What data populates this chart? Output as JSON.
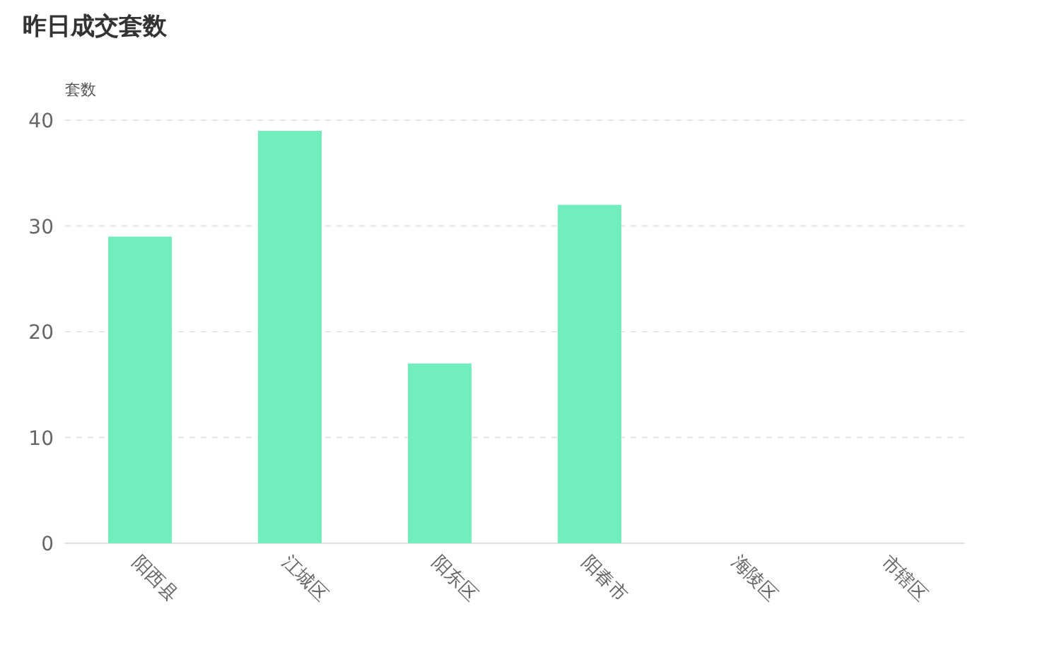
{
  "chart_data": {
    "type": "bar",
    "title": "昨日成交套数",
    "ylabel": "套数",
    "categories": [
      "阳西县",
      "江城区",
      "阳东区",
      "阳春市",
      "海陵区",
      "市辖区"
    ],
    "values": [
      29,
      39,
      17,
      32,
      0,
      0
    ],
    "color": "#72edbd",
    "ylim": [
      0,
      40
    ],
    "yticks": [
      0,
      10,
      20,
      30,
      40
    ],
    "grid": "y"
  }
}
